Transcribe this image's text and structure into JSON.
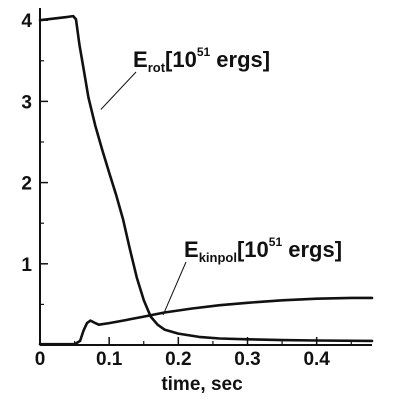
{
  "chart_data": {
    "type": "line",
    "xlabel": "time, sec",
    "ylabel": "",
    "xlim": [
      0,
      0.48
    ],
    "ylim": [
      0,
      4.15
    ],
    "grid": false,
    "x_ticks": [
      {
        "value": 0,
        "label": "0"
      },
      {
        "value": 0.1,
        "label": "0.1"
      },
      {
        "value": 0.2,
        "label": "0.2"
      },
      {
        "value": 0.3,
        "label": "0.3"
      },
      {
        "value": 0.4,
        "label": "0.4"
      }
    ],
    "y_ticks": [
      {
        "value": 1,
        "label": "1"
      },
      {
        "value": 2,
        "label": "2"
      },
      {
        "value": 3,
        "label": "3"
      },
      {
        "value": 4,
        "label": "4"
      }
    ],
    "series": [
      {
        "key": "erot",
        "color": "#111111",
        "points": [
          [
            0.0,
            4.0
          ],
          [
            0.02,
            4.02
          ],
          [
            0.04,
            4.04
          ],
          [
            0.048,
            4.05
          ],
          [
            0.052,
            4.01
          ],
          [
            0.057,
            3.7
          ],
          [
            0.063,
            3.4
          ],
          [
            0.07,
            3.05
          ],
          [
            0.08,
            2.7
          ],
          [
            0.09,
            2.4
          ],
          [
            0.1,
            2.12
          ],
          [
            0.11,
            1.85
          ],
          [
            0.12,
            1.55
          ],
          [
            0.13,
            1.18
          ],
          [
            0.14,
            0.83
          ],
          [
            0.15,
            0.55
          ],
          [
            0.16,
            0.35
          ],
          [
            0.17,
            0.25
          ],
          [
            0.18,
            0.19
          ],
          [
            0.2,
            0.14
          ],
          [
            0.23,
            0.1
          ],
          [
            0.26,
            0.08
          ],
          [
            0.3,
            0.07
          ],
          [
            0.35,
            0.06
          ],
          [
            0.4,
            0.055
          ],
          [
            0.48,
            0.05
          ]
        ]
      },
      {
        "key": "ekinpol",
        "color": "#111111",
        "points": [
          [
            0.0,
            0.01
          ],
          [
            0.05,
            0.01
          ],
          [
            0.058,
            0.05
          ],
          [
            0.063,
            0.18
          ],
          [
            0.068,
            0.27
          ],
          [
            0.073,
            0.3
          ],
          [
            0.08,
            0.27
          ],
          [
            0.085,
            0.25
          ],
          [
            0.1,
            0.27
          ],
          [
            0.12,
            0.3
          ],
          [
            0.15,
            0.35
          ],
          [
            0.18,
            0.4
          ],
          [
            0.22,
            0.45
          ],
          [
            0.26,
            0.49
          ],
          [
            0.3,
            0.52
          ],
          [
            0.35,
            0.55
          ],
          [
            0.4,
            0.57
          ],
          [
            0.45,
            0.58
          ],
          [
            0.48,
            0.58
          ]
        ]
      }
    ],
    "annotations": [
      {
        "key": "erot",
        "base": "E",
        "sub": "rot",
        "bracket_open": "[10",
        "sup": "51",
        "units": " ergs]",
        "pointer_to": [
          0.088,
          2.9
        ]
      },
      {
        "key": "ekinpol",
        "base": "E",
        "sub": "kinpol",
        "bracket_open": "[10",
        "sup": "51",
        "units": " ergs]",
        "pointer_to": [
          0.178,
          0.37
        ]
      }
    ]
  }
}
